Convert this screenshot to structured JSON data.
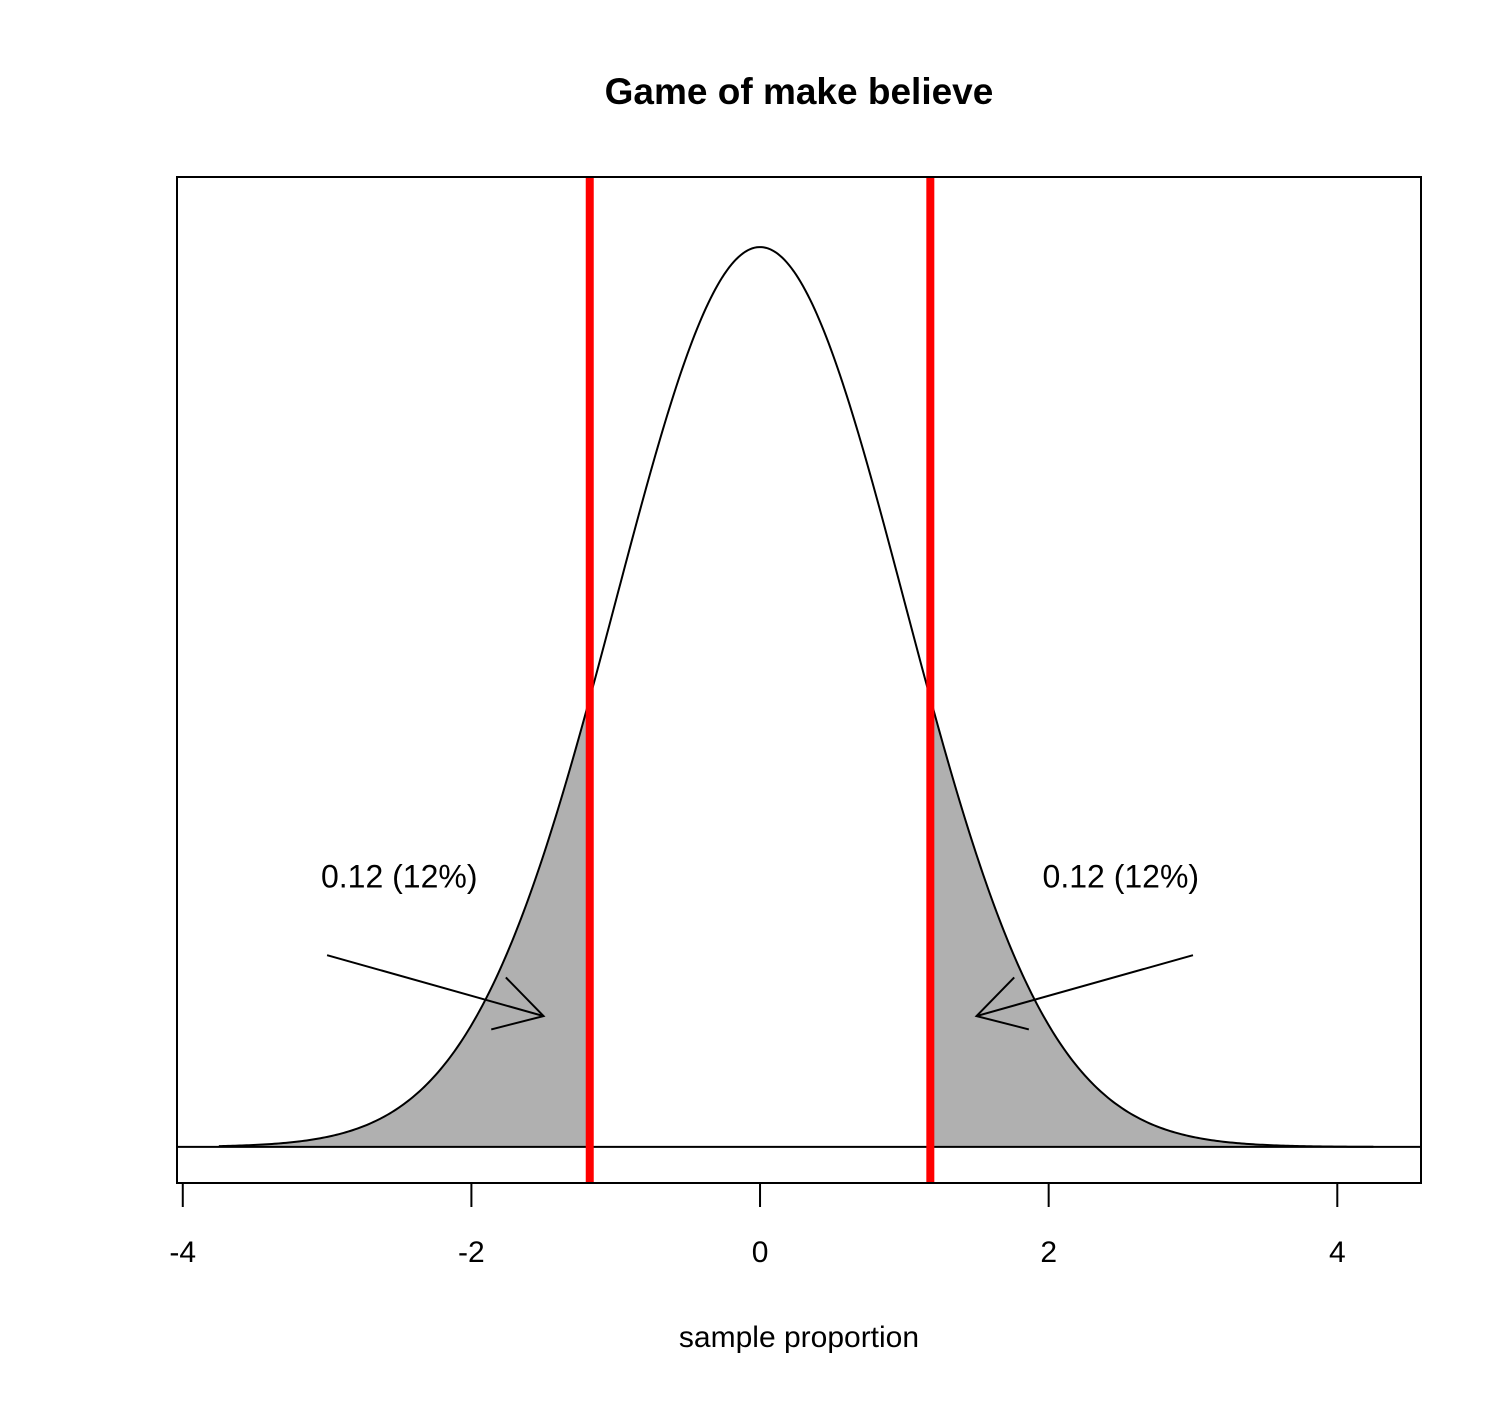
{
  "chart_data": {
    "type": "area",
    "title": "Game of make believe",
    "xlabel": "sample proportion",
    "ylabel": "",
    "xlim": [
      -4.04,
      4.58
    ],
    "ylim": [
      -0.016,
      0.43
    ],
    "xticks": [
      -4,
      -2,
      0,
      2,
      4
    ],
    "xtick_labels": [
      "-4",
      "-2",
      "0",
      "2",
      "4"
    ],
    "y_axis_drawn": false,
    "curve": {
      "distribution": "normal",
      "mean": 0,
      "sd": 1,
      "x_range": [
        -3.75,
        4.25
      ]
    },
    "baseline_y": 0,
    "critical_lines": {
      "values": [
        -1.18,
        1.18
      ],
      "color": "#ff0000"
    },
    "shaded_tails": {
      "color": "#b0b0b0",
      "regions": [
        {
          "from": -3.75,
          "to": -1.18
        },
        {
          "from": 1.18,
          "to": 4.25
        }
      ]
    },
    "annotations": [
      {
        "label": "0.12 (12%)",
        "text_at": [
          -2.5,
          0.115
        ],
        "arrow_from": [
          -3.0,
          0.085
        ],
        "arrow_to": [
          -1.5,
          0.058
        ]
      },
      {
        "label": "0.12 (12%)",
        "text_at": [
          2.5,
          0.115
        ],
        "arrow_from": [
          3.0,
          0.085
        ],
        "arrow_to": [
          1.5,
          0.058
        ]
      }
    ],
    "grid": false,
    "box": true,
    "colors": {
      "curve": "#000000",
      "shade": "#b0b0b0",
      "critical": "#ff0000",
      "background": "#ffffff"
    }
  }
}
